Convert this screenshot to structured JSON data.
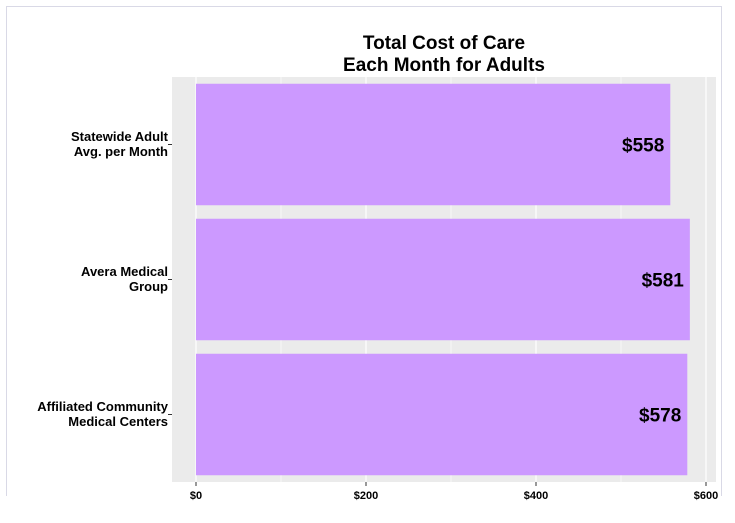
{
  "chart_data": {
    "type": "bar",
    "orientation": "horizontal",
    "title": [
      "Total Cost of Care",
      "Each Month for Adults"
    ],
    "categories": [
      [
        "Statewide Adult",
        "Avg. per Month"
      ],
      [
        "Avera Medical",
        "Group"
      ],
      [
        "Affiliated Community",
        "Medical Centers"
      ]
    ],
    "values": [
      558,
      581,
      578
    ],
    "data_labels": [
      "$558",
      "$581",
      "$578"
    ],
    "x_ticks": [
      0,
      200,
      400,
      600
    ],
    "x_tick_labels": [
      "$0",
      "$200",
      "$400",
      "$600"
    ],
    "xlim": [
      0,
      600
    ],
    "bar_color": "#cc99ff",
    "panel_color": "#ebebeb",
    "grid_color": "#ffffff",
    "grid": true,
    "legend": "none"
  }
}
